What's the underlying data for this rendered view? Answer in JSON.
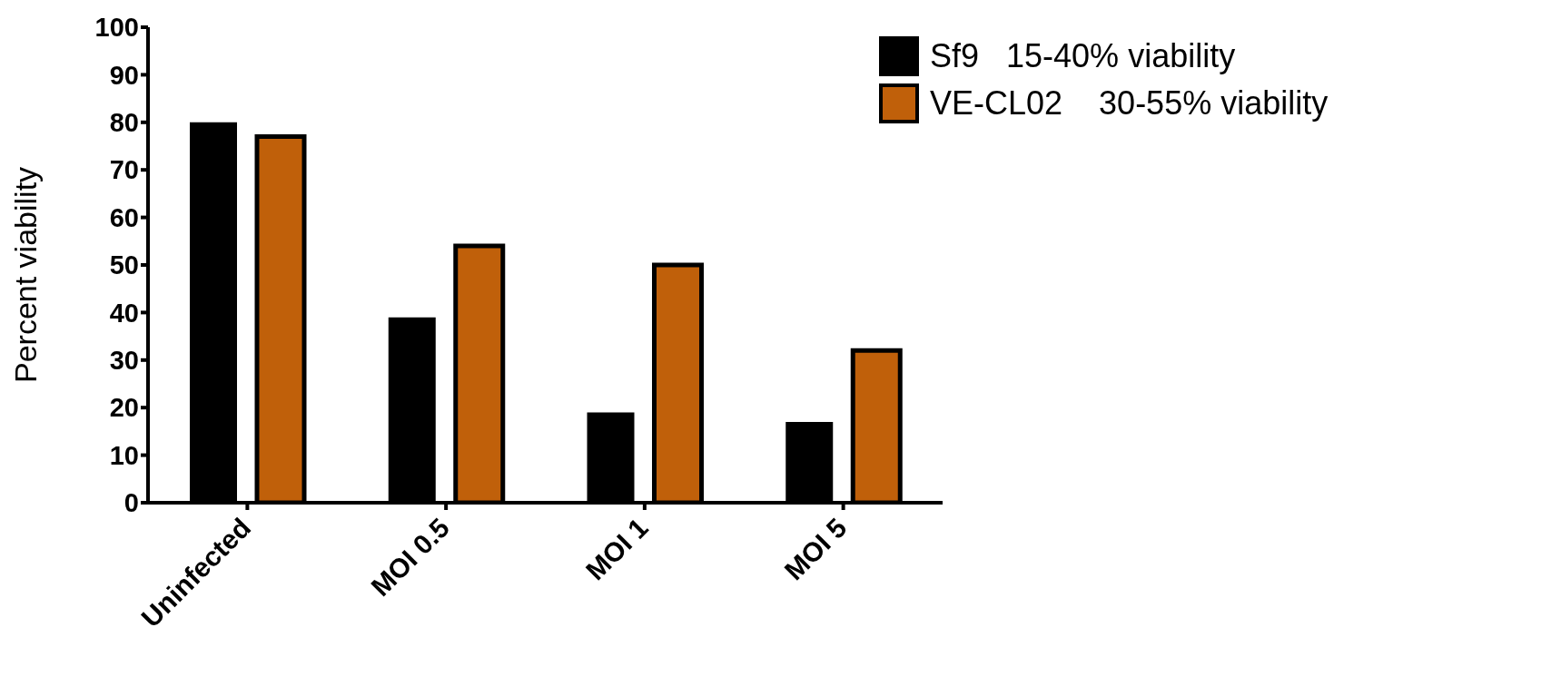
{
  "chart_data": {
    "type": "bar",
    "ylabel": "Percent viability",
    "categories": [
      "Uninfected",
      "MOI 0.5",
      "MOI 1",
      "MOI 5"
    ],
    "series": [
      {
        "name": "Sf9   15-40% viability",
        "color": "#000000",
        "values": [
          80,
          39,
          19,
          17
        ]
      },
      {
        "name": "VE-CL02    30-55% viability",
        "color": "#c0600a",
        "values": [
          77,
          54,
          50,
          32
        ]
      }
    ],
    "ylim": [
      0,
      100
    ],
    "yticks": [
      0,
      10,
      20,
      30,
      40,
      50,
      60,
      70,
      80,
      90,
      100
    ],
    "grid": false,
    "legend": "top right"
  }
}
